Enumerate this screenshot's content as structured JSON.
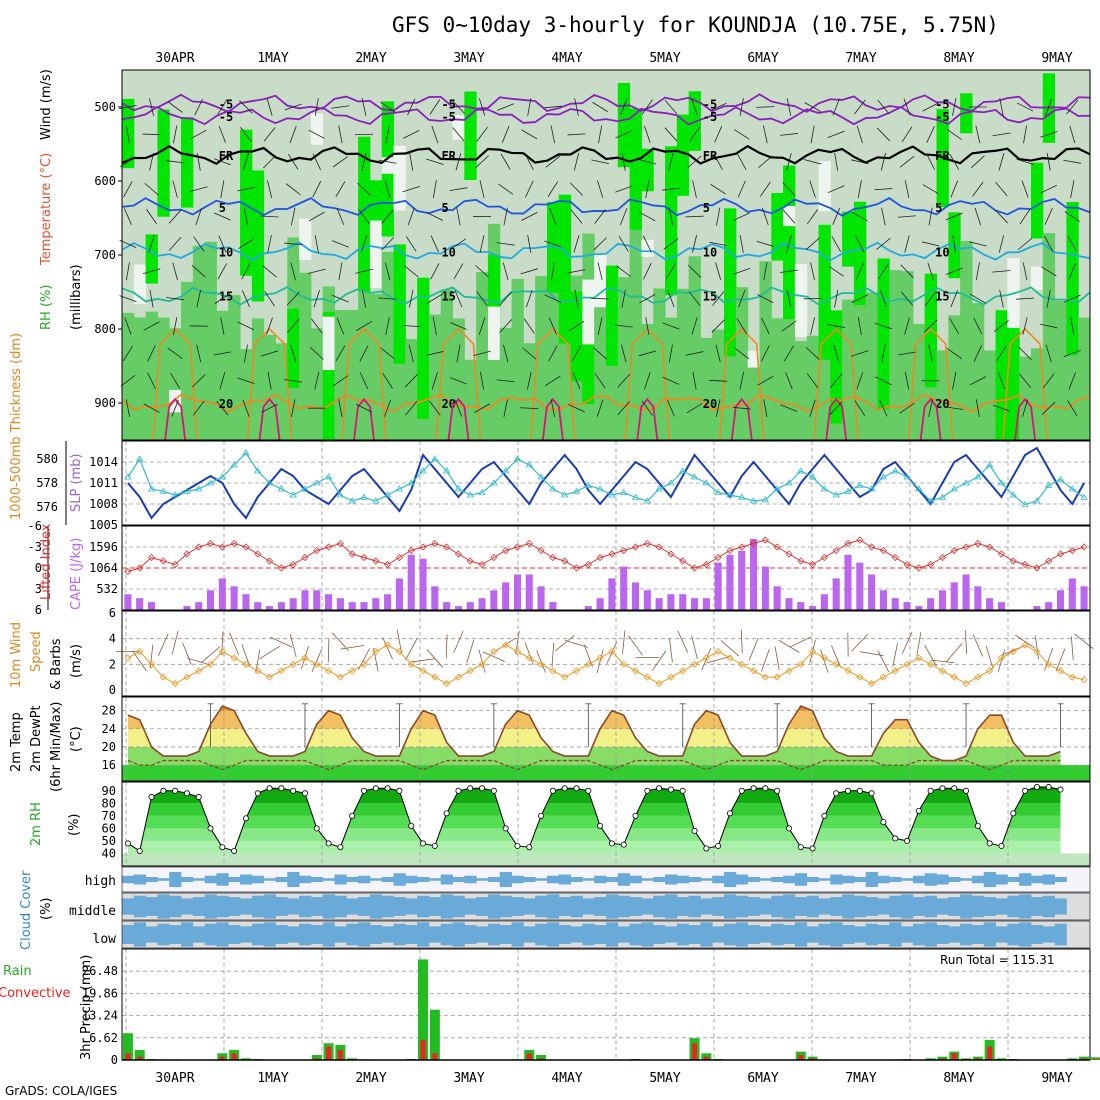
{
  "title": "GFS 0~10day 3-hourly for KOUNDJA (10.75E, 5.75N)",
  "footer": "GrADS: COLA/IGES",
  "dates": [
    "30APR",
    "1MAY",
    "2MAY",
    "3MAY",
    "4MAY",
    "5MAY",
    "6MAY",
    "7MAY",
    "8MAY",
    "9MAY"
  ],
  "colors": {
    "rh_green": "#00e600",
    "rh_mid": "#66cc66",
    "rh_light": "#c8dcc8",
    "sfc_green": "#33cc33",
    "slp": "#1a3cb4",
    "thick": "#33bbcc",
    "li": "#dd3333",
    "cape": "#bb66ee",
    "wind": "#ee9922",
    "temp_orange": "#ee8822",
    "temp_yellow": "#f4f088",
    "cloud": "#6aaad8",
    "cloud_bg": "#dddddd",
    "precip": "#22bb22",
    "conv": "#ee2222"
  },
  "panel1": {
    "label_wind": "Wind (m/s)",
    "label_temp": "Temperature (°C)",
    "label_rh": "RH (%)",
    "label_mb": "(millibars)",
    "yticks": [
      "500",
      "600",
      "700",
      "800",
      "900"
    ],
    "contours": [
      {
        "label": "-5",
        "level": 495,
        "color": "#8822bb"
      },
      {
        "label": "FR",
        "level": 565,
        "color": "#000000"
      },
      {
        "label": "-5",
        "level": 512,
        "color": "#8822bb"
      },
      {
        "label": "5",
        "level": 635,
        "color": "#2255dd"
      },
      {
        "label": "10",
        "level": 695,
        "color": "#22aadd"
      },
      {
        "label": "15",
        "level": 755,
        "color": "#22bb99"
      },
      {
        "label": "20",
        "level": 900,
        "color": "#ee8822"
      }
    ]
  },
  "panel2": {
    "label_left": "1000-500mb Thickness (dm)",
    "label_right": "SLP (mb)",
    "left_ticks": [
      "580",
      "578",
      "576"
    ],
    "right_ticks": [
      "1014",
      "1011",
      "1008",
      "1005"
    ]
  },
  "panel3": {
    "label_left": "Lifted Index",
    "label_right": "CAPE (J/kg)",
    "left_ticks": [
      "-6",
      "-3",
      "0",
      "3",
      "6"
    ],
    "right_ticks": [
      "1596",
      "1064",
      "532"
    ]
  },
  "panel4": {
    "label1": "10m Wind",
    "label2": "Speed",
    "label3": "& Barbs",
    "unit": "(m/s)",
    "yticks": [
      "6",
      "4",
      "2",
      "0"
    ]
  },
  "panel5": {
    "label1": "2m Temp",
    "label2": "2m DewPt",
    "label3": "(6hr Min/Max)",
    "unit": "(°C)",
    "yticks": [
      "28",
      "24",
      "20",
      "16"
    ]
  },
  "panel6": {
    "label": "2m RH",
    "unit": "(%)",
    "yticks": [
      "90",
      "80",
      "70",
      "60",
      "50",
      "40"
    ]
  },
  "panel7": {
    "label": "Cloud Cover",
    "unit": "(%)",
    "levels": [
      "high",
      "middle",
      "low"
    ]
  },
  "panel8": {
    "label1": "Total / Rain",
    "label2": "Convective",
    "ylabel": "3hr Precip (mm)",
    "yticks": [
      "26.48",
      "19.86",
      "13.24",
      "6.62",
      "0"
    ],
    "run_total": "Run Total = 115.31"
  },
  "chart_data": {
    "type": "meteogram",
    "slp_mb": [
      1011,
      1009,
      1006,
      1008,
      1009,
      1010,
      1011,
      1012,
      1011,
      1008,
      1006,
      1009,
      1011,
      1013,
      1012,
      1010,
      1009,
      1008,
      1010,
      1012,
      1013,
      1011,
      1009,
      1007,
      1010,
      1015,
      1013,
      1011,
      1009,
      1011,
      1013,
      1014,
      1012,
      1010,
      1008,
      1011,
      1013,
      1015,
      1013,
      1010,
      1008,
      1010,
      1012,
      1014,
      1013,
      1011,
      1009,
      1012,
      1015,
      1013,
      1011,
      1009,
      1012,
      1014,
      1012,
      1010,
      1008,
      1011,
      1013,
      1015,
      1013,
      1011,
      1009,
      1010,
      1013,
      1014,
      1012,
      1010,
      1008,
      1011,
      1014,
      1015,
      1013,
      1011,
      1009,
      1012,
      1015,
      1016,
      1013,
      1010,
      1008,
      1011
    ],
    "thickness_dm": [
      578.5,
      580,
      577.5,
      577.3,
      577,
      577.3,
      577.5,
      578,
      578.5,
      579.5,
      580.5,
      579,
      578,
      577.5,
      577,
      577.5,
      578,
      578.5,
      577,
      576.5,
      576.8,
      576.5,
      577,
      577.5,
      578,
      579,
      580,
      579,
      577.5,
      577,
      577.2,
      578,
      579,
      580,
      579.5,
      578.5,
      577.5,
      577,
      577.3,
      577.8,
      577.5,
      577,
      577.2,
      576.8,
      576.5,
      577.5,
      578,
      579,
      578.5,
      578,
      577.2,
      577,
      576.8,
      576.5,
      576.6,
      577.5,
      578,
      579,
      578.5,
      577.5,
      577,
      577.3,
      577.8,
      577.5,
      578.5,
      579,
      578.5,
      577.5,
      576.5,
      576.8,
      577.5,
      578,
      578.5,
      579.5,
      578,
      577,
      576.2,
      576.5,
      577.8,
      578.3,
      577.5,
      576.8
    ],
    "lifted_index": [
      0.5,
      0,
      -1.5,
      -1,
      -0.5,
      -2,
      -3,
      -3.5,
      -3,
      -3.5,
      -3,
      -2,
      -1,
      0,
      -0.5,
      -1.5,
      -2.5,
      -3,
      -3.5,
      -2,
      -1.5,
      -1,
      -0.5,
      -1.5,
      -2.5,
      -3,
      -3.5,
      -3,
      -2,
      -1,
      -0.5,
      -1.5,
      -2.5,
      -3,
      -3.5,
      -2.5,
      -1.5,
      -1,
      0,
      -0.5,
      -1.5,
      -2,
      -2.5,
      -3,
      -3.5,
      -3,
      -2,
      -1,
      0,
      -0.5,
      -1.5,
      -2.5,
      -3,
      -3.5,
      -4,
      -3,
      -2,
      -1,
      -0.5,
      -1.5,
      -2.5,
      -3.5,
      -4,
      -3,
      -2.5,
      -1.5,
      -0.5,
      0,
      -0.5,
      -1.5,
      -2.5,
      -3,
      -3.5,
      -3,
      -2,
      -1,
      -0.5,
      0,
      -1,
      -2,
      -2.5,
      -3
    ],
    "cape_jkg": [
      400,
      300,
      200,
      0,
      0,
      100,
      200,
      500,
      800,
      600,
      400,
      200,
      100,
      200,
      300,
      500,
      500,
      400,
      300,
      200,
      200,
      300,
      400,
      800,
      1400,
      1300,
      600,
      200,
      100,
      200,
      300,
      500,
      700,
      900,
      900,
      600,
      200,
      0,
      0,
      100,
      300,
      800,
      1100,
      700,
      500,
      300,
      400,
      400,
      300,
      300,
      1200,
      1400,
      1500,
      1800,
      1100,
      600,
      300,
      200,
      100,
      400,
      800,
      1400,
      1200,
      900,
      500,
      300,
      200,
      100,
      300,
      500,
      700,
      900,
      600,
      300,
      200,
      0,
      0,
      100,
      200,
      500,
      800,
      600
    ],
    "wind10m_ms": [
      2.5,
      3,
      2,
      1,
      0.5,
      1,
      1.5,
      2,
      3,
      2.5,
      2,
      1.5,
      1,
      1.5,
      2,
      2.5,
      2,
      1.5,
      1,
      1.5,
      2,
      3,
      3.5,
      3,
      2,
      1.5,
      1,
      0.5,
      1,
      1.5,
      2,
      3,
      3.5,
      3,
      2.5,
      2,
      1.5,
      1,
      1.5,
      2,
      2.5,
      3,
      2,
      1.5,
      1,
      0.5,
      1,
      1.5,
      2,
      2.5,
      3,
      2.5,
      2,
      1.5,
      1,
      1,
      1.5,
      2,
      3,
      2.5,
      2,
      1.5,
      1,
      0.5,
      1,
      1.5,
      2,
      2.5,
      2,
      1.5,
      1,
      0.5,
      1,
      1.5,
      2.5,
      3,
      3.5,
      3,
      2,
      1.5,
      1,
      0.8
    ],
    "temp2m_c": [
      27,
      26,
      20,
      18,
      18,
      18,
      19,
      25,
      29,
      28,
      23,
      19,
      18,
      18,
      18,
      19,
      25,
      28,
      27,
      22,
      19,
      18,
      18,
      18,
      24,
      28,
      27,
      21,
      18,
      18,
      18,
      19,
      25,
      28,
      27,
      22,
      19,
      18,
      18,
      18,
      24,
      28,
      27,
      22,
      19,
      18,
      18,
      18,
      25,
      28,
      27,
      21,
      18,
      18,
      18,
      19,
      25,
      29,
      28,
      22,
      19,
      18,
      18,
      18,
      23,
      26,
      26,
      21,
      18,
      17,
      17,
      18,
      24,
      27,
      27,
      21,
      18,
      18,
      18,
      19
    ],
    "dewpt2m_c": [
      17,
      16,
      16,
      17,
      17,
      17,
      17,
      16,
      15,
      16,
      17,
      17,
      17,
      17,
      17,
      17,
      16,
      15,
      16,
      17,
      17,
      17,
      17,
      17,
      16,
      15,
      16,
      17,
      17,
      17,
      17,
      17,
      16,
      15,
      16,
      17,
      17,
      17,
      17,
      17,
      16,
      15,
      16,
      17,
      17,
      17,
      17,
      17,
      16,
      15,
      16,
      17,
      17,
      17,
      17,
      17,
      16,
      15,
      16,
      17,
      17,
      17,
      17,
      17,
      16,
      16,
      16,
      17,
      17,
      17,
      17,
      17,
      16,
      15,
      16,
      17,
      17,
      17,
      17,
      17
    ],
    "rh2m_pct": [
      48,
      42,
      85,
      90,
      90,
      88,
      85,
      60,
      45,
      42,
      68,
      88,
      92,
      92,
      90,
      88,
      60,
      48,
      45,
      70,
      90,
      92,
      92,
      90,
      62,
      48,
      46,
      72,
      90,
      92,
      92,
      90,
      60,
      46,
      45,
      70,
      90,
      92,
      92,
      90,
      62,
      48,
      47,
      70,
      90,
      92,
      91,
      90,
      58,
      44,
      46,
      72,
      90,
      92,
      92,
      90,
      60,
      45,
      44,
      70,
      88,
      90,
      90,
      88,
      65,
      52,
      50,
      74,
      90,
      92,
      92,
      90,
      62,
      48,
      46,
      72,
      90,
      93,
      93,
      91
    ],
    "cloud_high": [
      30,
      40,
      20,
      10,
      60,
      20,
      10,
      30,
      50,
      20,
      40,
      30,
      10,
      20,
      60,
      30,
      20,
      10,
      40,
      20,
      30,
      10,
      20,
      50,
      30,
      20,
      10,
      40,
      20,
      30,
      10,
      20,
      60,
      30,
      20,
      10,
      30,
      40,
      20,
      10,
      30,
      20,
      50,
      30,
      10,
      20,
      40,
      30,
      20,
      10,
      30,
      60,
      40,
      20,
      10,
      20,
      30,
      50,
      20,
      10,
      40,
      30,
      20,
      60,
      30,
      20,
      10,
      30,
      50,
      40,
      20,
      10,
      30,
      60,
      40,
      20,
      50,
      30,
      40,
      20
    ],
    "cloud_mid": [
      60,
      80,
      70,
      90,
      80,
      60,
      70,
      90,
      80,
      70,
      60,
      80,
      90,
      70,
      60,
      80,
      70,
      90,
      80,
      60,
      70,
      90,
      80,
      70,
      60,
      80,
      70,
      90,
      80,
      60,
      70,
      90,
      80,
      70,
      60,
      80,
      90,
      70,
      80,
      60,
      70,
      90,
      80,
      70,
      60,
      80,
      90,
      70,
      80,
      60,
      70,
      90,
      80,
      70,
      60,
      80,
      90,
      70,
      80,
      60,
      70,
      90,
      80,
      70,
      60,
      80,
      90,
      70,
      80,
      60,
      70,
      90,
      80,
      70,
      60,
      80,
      90,
      70,
      80,
      60
    ],
    "cloud_low": [
      70,
      90,
      60,
      80,
      70,
      90,
      60,
      80,
      90,
      70,
      60,
      80,
      90,
      70,
      60,
      80,
      70,
      90,
      60,
      80,
      90,
      70,
      60,
      80,
      70,
      90,
      60,
      80,
      90,
      70,
      60,
      80,
      70,
      90,
      60,
      80,
      90,
      70,
      60,
      80,
      70,
      90,
      60,
      80,
      90,
      70,
      60,
      80,
      70,
      90,
      60,
      80,
      90,
      70,
      60,
      80,
      70,
      90,
      60,
      80,
      90,
      70,
      60,
      80,
      70,
      90,
      60,
      80,
      90,
      70,
      60,
      80,
      70,
      90,
      60,
      80,
      90,
      70,
      60,
      80
    ],
    "precip_total_mm": [
      8,
      3,
      0.3,
      0.2,
      0.2,
      0.1,
      0,
      0,
      2,
      3,
      0.5,
      0.3,
      0,
      0,
      0,
      0,
      1.5,
      5,
      4.5,
      0.5,
      0.2,
      0,
      0,
      0,
      0.3,
      30,
      15,
      0,
      0,
      0,
      0,
      0,
      0,
      0.2,
      3,
      1.5,
      0,
      0,
      0,
      0,
      0,
      0,
      0,
      0.3,
      0,
      0,
      0,
      0,
      6.5,
      2,
      0.3,
      0,
      0,
      0,
      0,
      0,
      0,
      2.5,
      1,
      0.2,
      0,
      0,
      0,
      0,
      0,
      0.2,
      0.3,
      0,
      0.5,
      1,
      2.5,
      0.5,
      1,
      6,
      0.5,
      0.3,
      0,
      0,
      0,
      0,
      0.5,
      1,
      0.8,
      0.5
    ],
    "precip_conv_mm": [
      2,
      1,
      0,
      0,
      0,
      0,
      0,
      0,
      1,
      2,
      0,
      0,
      0,
      0,
      0,
      0,
      0.5,
      4,
      3,
      0,
      0,
      0,
      0,
      0,
      0,
      6,
      2,
      0,
      0,
      0,
      0,
      0,
      0,
      0,
      2,
      0.5,
      0,
      0,
      0,
      0,
      0,
      0,
      0,
      0,
      0,
      0,
      0,
      0,
      5,
      1,
      0,
      0,
      0,
      0,
      0,
      0,
      0,
      1.5,
      0.5,
      0,
      0,
      0,
      0,
      0,
      0,
      0,
      0,
      0,
      0.3,
      0.5,
      2,
      0.3,
      0.5,
      4,
      0,
      0,
      0,
      0,
      0,
      0,
      0.3,
      0.5,
      0.3,
      0.2
    ]
  }
}
